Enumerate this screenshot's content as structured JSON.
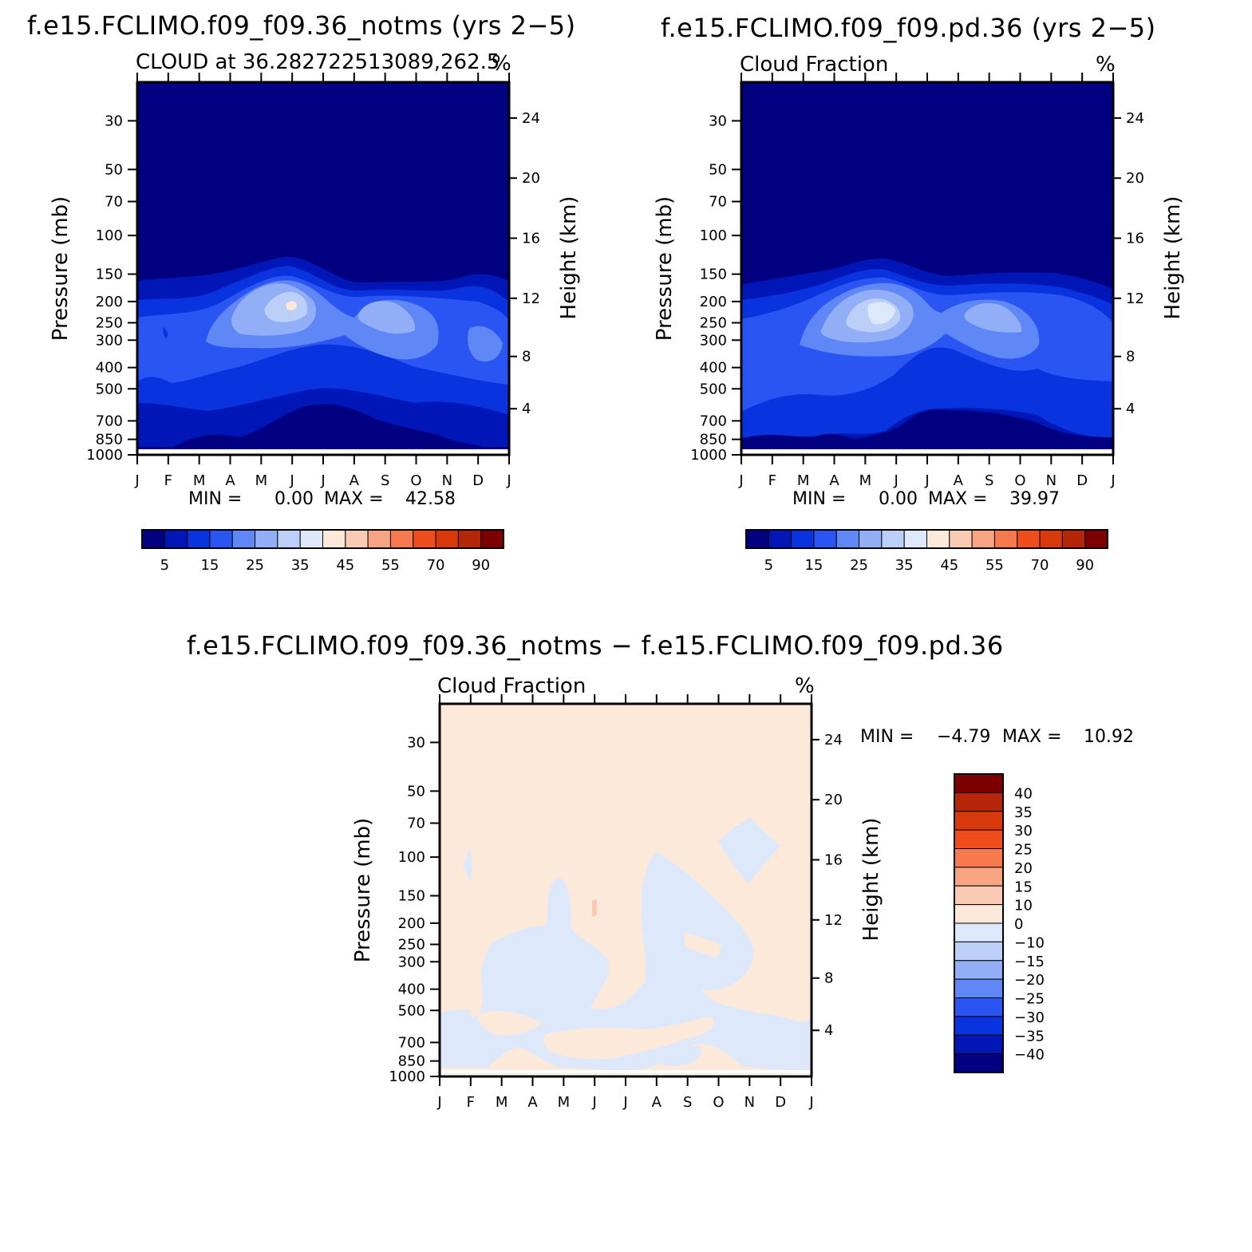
{
  "chart_data": [
    {
      "type": "contour",
      "title": "f.e15.FCLIMO.f09_f09.36_notms (yrs 2−5)",
      "subtitle_left": "CLOUD at 36.282722513089,262.5",
      "subtitle_right": "%",
      "ylabel_left": "Pressure (mb)",
      "ylabel_right": "Height (km)",
      "x_categories": [
        "J",
        "F",
        "M",
        "A",
        "M",
        "J",
        "J",
        "A",
        "S",
        "O",
        "N",
        "D",
        "J"
      ],
      "pressure_ticks": [
        30,
        50,
        70,
        100,
        150,
        200,
        250,
        300,
        400,
        500,
        700,
        850,
        1000
      ],
      "height_ticks": [
        4,
        8,
        12,
        16,
        20,
        24
      ],
      "ylim_mb": [
        1000,
        20
      ],
      "min_label": "MIN =",
      "min_value": "0.00",
      "max_label": "MAX =",
      "max_value": "42.58",
      "peak_region": {
        "month": "J",
        "pressure_mb": 230,
        "value": 42.58
      },
      "colorbar_levels": [
        0,
        5,
        10,
        15,
        20,
        25,
        30,
        35,
        40,
        45,
        50,
        55,
        60,
        70,
        80,
        90,
        100
      ],
      "colorbar_labels": [
        "5",
        "15",
        "25",
        "35",
        "45",
        "55",
        "70",
        "90"
      ],
      "colors": [
        "#000080",
        "#0016b6",
        "#0a33e0",
        "#2a55f2",
        "#5f87f5",
        "#91aef6",
        "#bccff8",
        "#dde9fa",
        "#fde9da",
        "#fbcab3",
        "#f8a483",
        "#f67a4d",
        "#f04d1e",
        "#d93a0c",
        "#b52508",
        "#7d0000"
      ]
    },
    {
      "type": "contour",
      "title": "f.e15.FCLIMO.f09_f09.pd.36 (yrs 2−5)",
      "subtitle_left": "Cloud Fraction",
      "subtitle_right": "%",
      "ylabel_left": "Pressure (mb)",
      "ylabel_right": "Height (km)",
      "x_categories": [
        "J",
        "F",
        "M",
        "A",
        "M",
        "J",
        "J",
        "A",
        "S",
        "O",
        "N",
        "D",
        "J"
      ],
      "pressure_ticks": [
        30,
        50,
        70,
        100,
        150,
        200,
        250,
        300,
        400,
        500,
        700,
        850,
        1000
      ],
      "height_ticks": [
        4,
        8,
        12,
        16,
        20,
        24
      ],
      "ylim_mb": [
        1000,
        20
      ],
      "min_label": "MIN =",
      "min_value": "0.00",
      "max_label": "MAX =",
      "max_value": "39.97",
      "peak_region": {
        "month": "M",
        "pressure_mb": 250,
        "value": 39.97
      },
      "colorbar_levels": [
        0,
        5,
        10,
        15,
        20,
        25,
        30,
        35,
        40,
        45,
        50,
        55,
        60,
        70,
        80,
        90,
        100
      ],
      "colorbar_labels": [
        "5",
        "15",
        "25",
        "35",
        "45",
        "55",
        "70",
        "90"
      ],
      "colors": [
        "#000080",
        "#0016b6",
        "#0a33e0",
        "#2a55f2",
        "#5f87f5",
        "#91aef6",
        "#bccff8",
        "#dde9fa",
        "#fde9da",
        "#fbcab3",
        "#f8a483",
        "#f67a4d",
        "#f04d1e",
        "#d93a0c",
        "#b52508",
        "#7d0000"
      ]
    },
    {
      "type": "contour",
      "title": "f.e15.FCLIMO.f09_f09.36_notms − f.e15.FCLIMO.f09_f09.pd.36",
      "subtitle_left": "Cloud Fraction",
      "subtitle_right": "%",
      "ylabel_left": "Pressure (mb)",
      "ylabel_right": "Height (km)",
      "x_categories": [
        "J",
        "F",
        "M",
        "A",
        "M",
        "J",
        "J",
        "A",
        "S",
        "O",
        "N",
        "D",
        "J"
      ],
      "pressure_ticks": [
        30,
        50,
        70,
        100,
        150,
        200,
        250,
        300,
        400,
        500,
        700,
        850,
        1000
      ],
      "height_ticks": [
        4,
        8,
        12,
        16,
        20,
        24
      ],
      "ylim_mb": [
        1000,
        20
      ],
      "min_label": "MIN =",
      "min_value": "−4.79",
      "max_label": "MAX =",
      "max_value": "10.92",
      "colorbar_levels": [
        -45,
        -40,
        -35,
        -30,
        -25,
        -20,
        -15,
        -10,
        0,
        10,
        15,
        20,
        25,
        30,
        35,
        40,
        45
      ],
      "colorbar_labels": [
        "40",
        "35",
        "30",
        "25",
        "20",
        "15",
        "10",
        "0",
        "−10",
        "−15",
        "−20",
        "−25",
        "−30",
        "−35",
        "−40"
      ],
      "colors": [
        "#7d0000",
        "#b52508",
        "#d93a0c",
        "#f04d1e",
        "#f67a4d",
        "#f8a483",
        "#fbcab3",
        "#fde9da",
        "#dde9fa",
        "#bccff8",
        "#91aef6",
        "#5f87f5",
        "#2a55f2",
        "#0a33e0",
        "#0016b6",
        "#000080"
      ]
    }
  ]
}
